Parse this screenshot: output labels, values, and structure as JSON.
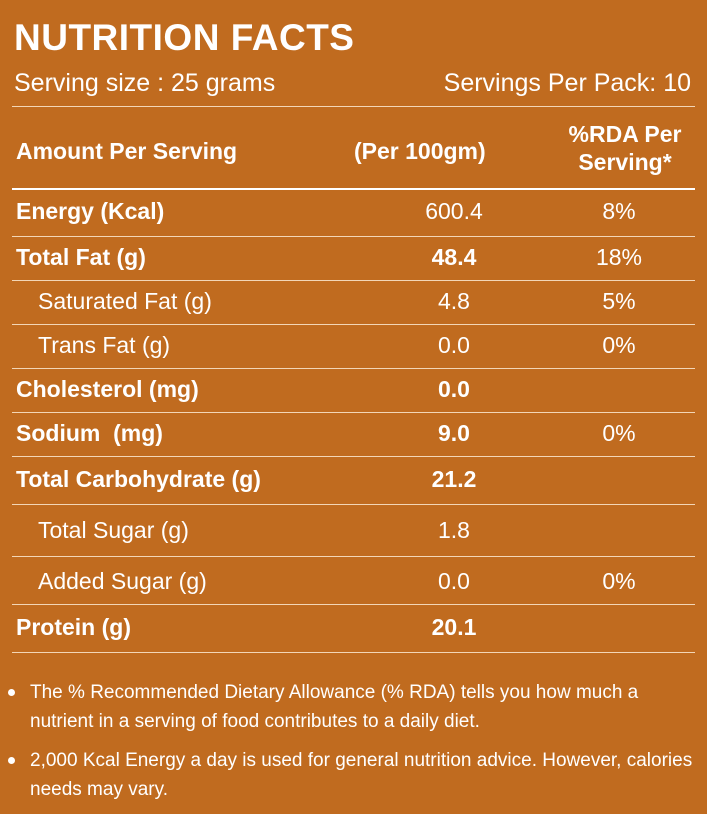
{
  "title": "NUTRITION FACTS",
  "serving_size": "Serving size : 25 grams",
  "servings_per_pack": "Servings Per Pack: 10",
  "headers": {
    "amount": "Amount Per Serving",
    "per100": "(Per 100gm)",
    "rda_line1": "%RDA Per",
    "rda_line2": "Serving*"
  },
  "rows": [
    {
      "label": "Energy (Kcal)",
      "value": "600.4",
      "rda": "8%"
    },
    {
      "label": "Total Fat (g)",
      "value": "48.4",
      "rda": "18%"
    },
    {
      "label": "Saturated Fat (g)",
      "value": "4.8",
      "rda": "5%"
    },
    {
      "label": "Trans Fat (g)",
      "value": "0.0",
      "rda": "0%"
    },
    {
      "label": "Cholesterol (mg)",
      "value": "0.0",
      "rda": ""
    },
    {
      "label": "Sodium  (mg)",
      "value": "9.0",
      "rda": "0%"
    },
    {
      "label": "Total Carbohydrate (g)",
      "value": "21.2",
      "rda": ""
    },
    {
      "label": "Total Sugar (g)",
      "value": "1.8",
      "rda": ""
    },
    {
      "label": "Added Sugar (g)",
      "value": "0.0",
      "rda": "0%"
    },
    {
      "label": "Protein (g)",
      "value": "20.1",
      "rda": ""
    }
  ],
  "notes": [
    "The % Recommended Dietary Allowance (% RDA) tells you how much a nutrient in a serving of food contributes to a daily diet.",
    "2,000 Kcal Energy a day is used for general nutrition advice. However, calories needs may vary."
  ],
  "colors": {
    "background": "#c06b1f",
    "text": "#ffffff",
    "rule": "#f3d6b6"
  }
}
